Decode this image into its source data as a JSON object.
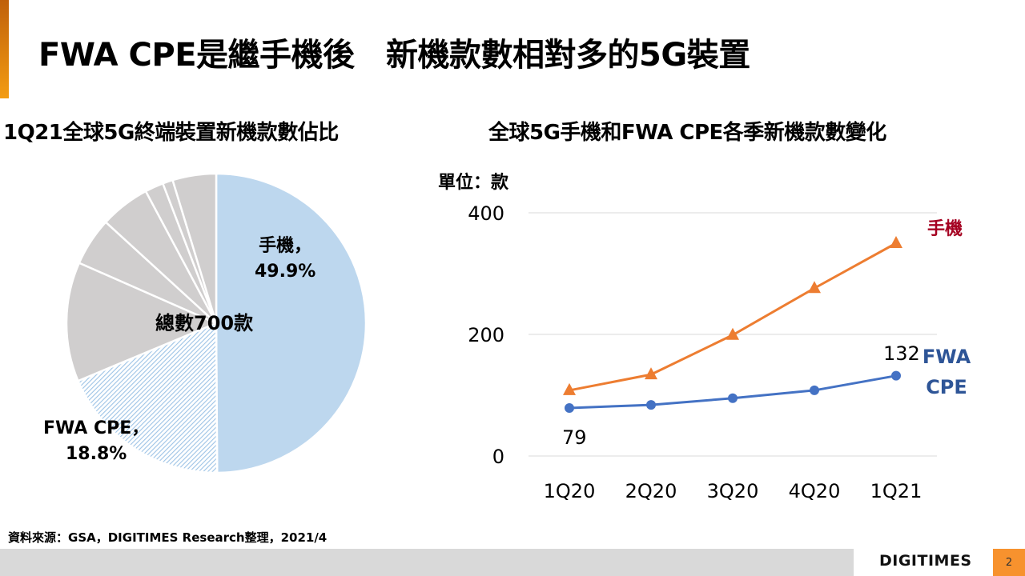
{
  "slide": {
    "title": "FWA CPE是繼手機後　新機款數相對多的5G裝置",
    "source": "資料來源：GSA，DIGITIMES Research整理，2021/4",
    "logo": "DIGITIMES",
    "page_number": "2"
  },
  "colors": {
    "accent_top": "#c0600a",
    "accent_bottom": "#f39c12",
    "phone_pie": "#bdd7ee",
    "other_pie": "#d0cece",
    "phone_line": "#ed7d31",
    "fwa_line": "#4472c4",
    "phone_label": "#a50021",
    "fwa_label": "#2e5597",
    "page_badge": "#f7922e"
  },
  "chart_data": [
    {
      "type": "pie",
      "title": "1Q21全球5G終端裝置新機款數佔比",
      "center_label": "總數700款",
      "slices": [
        {
          "name": "手機",
          "value": 49.9,
          "label": "手機，",
          "value_label": "49.9%",
          "style": "solid"
        },
        {
          "name": "FWA CPE",
          "value": 18.8,
          "label": "FWA CPE，",
          "value_label": "18.8%",
          "style": "hatched"
        },
        {
          "name": "other-1",
          "value": 12.9
        },
        {
          "name": "other-2",
          "value": 5.2
        },
        {
          "name": "other-3",
          "value": 5.4
        },
        {
          "name": "other-4",
          "value": 2.0
        },
        {
          "name": "other-5",
          "value": 1.1
        },
        {
          "name": "other-6",
          "value": 4.7
        }
      ]
    },
    {
      "type": "line",
      "title": "全球5G手機和FWA CPE各季新機款數變化",
      "ylabel": "單位：款",
      "categories": [
        "1Q20",
        "2Q20",
        "3Q20",
        "4Q20",
        "1Q21"
      ],
      "ylim": [
        0,
        400
      ],
      "yticks": [
        "0",
        "200",
        "400"
      ],
      "grid": true,
      "series": [
        {
          "name": "手機",
          "label": "手機",
          "marker": "triangle",
          "values": [
            108,
            134,
            199,
            276,
            350
          ]
        },
        {
          "name": "FWA CPE",
          "label_lines": [
            "FWA",
            "CPE"
          ],
          "marker": "circle",
          "values": [
            79,
            84,
            95,
            108,
            132
          ],
          "data_labels": {
            "first": "79",
            "last": "132"
          }
        }
      ]
    }
  ]
}
